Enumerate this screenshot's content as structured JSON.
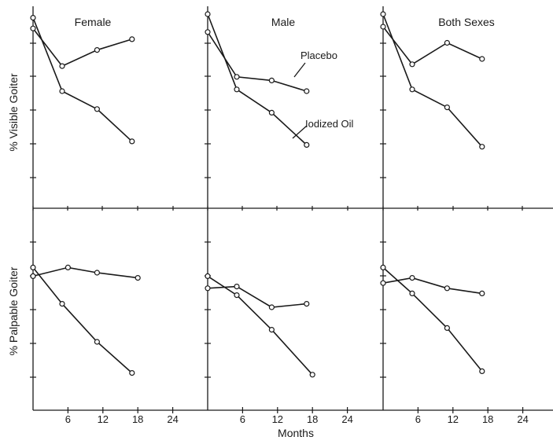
{
  "figure": {
    "xlabel": "Months",
    "row_labels": [
      "% Visible Goiter",
      "% Palpable Goiter"
    ],
    "col_titles": [
      "Female",
      "Male",
      "Both Sexes"
    ],
    "x_ticks": [
      "6",
      "12",
      "18",
      "24"
    ],
    "annotations": {
      "placebo": "Placebo",
      "oil": "Iodized Oil"
    }
  },
  "chart_data": [
    {
      "type": "line",
      "panel": "Female",
      "ylabel": "% Visible Goiter",
      "xlim": [
        0,
        24
      ],
      "series": [
        {
          "name": "Placebo",
          "x": [
            0,
            5,
            11,
            17
          ],
          "y": [
            0.92,
            0.71,
            0.8,
            0.86
          ]
        },
        {
          "name": "Iodized Oil",
          "x": [
            0,
            5,
            11,
            17
          ],
          "y": [
            0.98,
            0.57,
            0.47,
            0.29
          ]
        }
      ]
    },
    {
      "type": "line",
      "panel": "Male",
      "ylabel": "% Visible Goiter",
      "xlim": [
        0,
        24
      ],
      "series": [
        {
          "name": "Placebo",
          "x": [
            0,
            5,
            11,
            17
          ],
          "y": [
            0.9,
            0.65,
            0.63,
            0.57
          ]
        },
        {
          "name": "Iodized Oil",
          "x": [
            0,
            5,
            11,
            17
          ],
          "y": [
            1.0,
            0.58,
            0.45,
            0.27
          ]
        }
      ]
    },
    {
      "type": "line",
      "panel": "Both Sexes",
      "ylabel": "% Visible Goiter",
      "xlim": [
        0,
        24
      ],
      "series": [
        {
          "name": "Placebo",
          "x": [
            0,
            5,
            11,
            17
          ],
          "y": [
            0.93,
            0.72,
            0.84,
            0.75
          ]
        },
        {
          "name": "Iodized Oil",
          "x": [
            0,
            5,
            11,
            17
          ],
          "y": [
            1.0,
            0.58,
            0.48,
            0.26
          ]
        }
      ]
    },
    {
      "type": "line",
      "panel": "Female",
      "ylabel": "% Palpable Goiter",
      "xlim": [
        0,
        24
      ],
      "series": [
        {
          "name": "Placebo",
          "x": [
            0,
            6,
            11,
            18
          ],
          "y": [
            0.73,
            0.78,
            0.75,
            0.72
          ]
        },
        {
          "name": "Iodized Oil",
          "x": [
            0,
            5,
            11,
            17
          ],
          "y": [
            0.78,
            0.57,
            0.35,
            0.17
          ]
        }
      ]
    },
    {
      "type": "line",
      "panel": "Male",
      "ylabel": "% Palpable Goiter",
      "xlim": [
        0,
        24
      ],
      "series": [
        {
          "name": "Placebo",
          "x": [
            0,
            5,
            11,
            17
          ],
          "y": [
            0.66,
            0.67,
            0.55,
            0.57
          ]
        },
        {
          "name": "Iodized Oil",
          "x": [
            0,
            5,
            11,
            18
          ],
          "y": [
            0.73,
            0.62,
            0.42,
            0.16
          ]
        }
      ]
    },
    {
      "type": "line",
      "panel": "Both Sexes",
      "ylabel": "% Palpable Goiter",
      "xlim": [
        0,
        24
      ],
      "series": [
        {
          "name": "Placebo",
          "x": [
            0,
            5,
            11,
            17
          ],
          "y": [
            0.69,
            0.72,
            0.66,
            0.63
          ]
        },
        {
          "name": "Iodized Oil",
          "x": [
            0,
            5,
            11,
            17
          ],
          "y": [
            0.78,
            0.63,
            0.43,
            0.18
          ]
        }
      ]
    }
  ]
}
